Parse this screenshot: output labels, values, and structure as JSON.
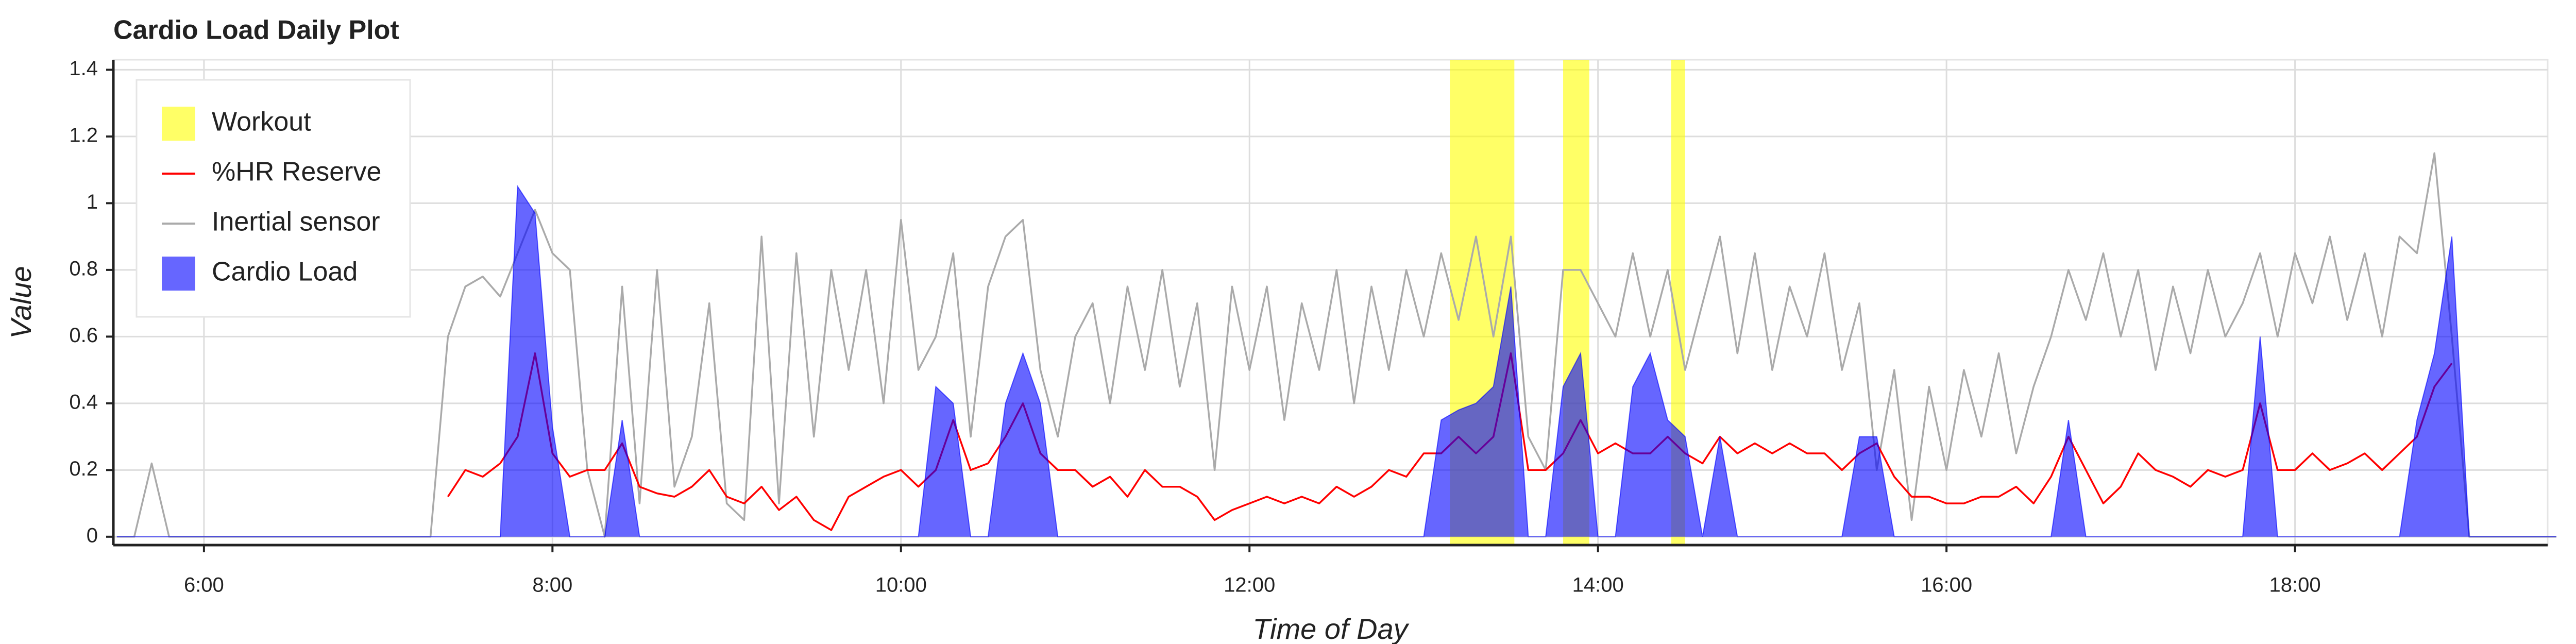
{
  "chart_data": {
    "type": "timeseries",
    "title": "Cardio Load Daily Plot",
    "x_label": "Time of Day",
    "y_label": "Value",
    "xlim": [
      5.48,
      19.45
    ],
    "ylim": [
      -0.025,
      1.43
    ],
    "xticks": [
      {
        "value": 6,
        "label": "6:00"
      },
      {
        "value": 8,
        "label": "8:00"
      },
      {
        "value": 10,
        "label": "10:00"
      },
      {
        "value": 12,
        "label": "12:00"
      },
      {
        "value": 14,
        "label": "14:00"
      },
      {
        "value": 16,
        "label": "16:00"
      },
      {
        "value": 18,
        "label": "18:00"
      }
    ],
    "yticks": [
      0,
      0.2,
      0.4,
      0.6,
      0.8,
      1,
      1.2,
      1.4
    ],
    "grid": true,
    "legend": "top-left",
    "x": [
      5.5,
      5.6,
      5.7,
      5.8,
      5.9,
      6,
      6.1,
      6.2,
      6.3,
      6.4,
      6.5,
      6.6,
      6.7,
      6.8,
      6.9,
      7,
      7.1,
      7.2,
      7.3,
      7.4,
      7.5,
      7.6,
      7.7,
      7.8,
      7.9,
      8,
      8.1,
      8.2,
      8.3,
      8.4,
      8.5,
      8.6,
      8.7,
      8.8,
      8.9,
      9,
      9.1,
      9.2,
      9.3,
      9.4,
      9.5,
      9.6,
      9.7,
      9.8,
      9.9,
      10,
      10.1,
      10.2,
      10.3,
      10.4,
      10.5,
      10.6,
      10.7,
      10.8,
      10.9,
      11,
      11.1,
      11.2,
      11.3,
      11.4,
      11.5,
      11.6,
      11.7,
      11.8,
      11.9,
      12,
      12.1,
      12.2,
      12.3,
      12.4,
      12.5,
      12.6,
      12.7,
      12.8,
      12.9,
      13,
      13.1,
      13.2,
      13.3,
      13.4,
      13.5,
      13.6,
      13.7,
      13.8,
      13.9,
      14,
      14.1,
      14.2,
      14.3,
      14.4,
      14.5,
      14.6,
      14.7,
      14.8,
      14.9,
      15,
      15.1,
      15.2,
      15.3,
      15.4,
      15.5,
      15.6,
      15.7,
      15.8,
      15.9,
      16,
      16.1,
      16.2,
      16.3,
      16.4,
      16.5,
      16.6,
      16.7,
      16.8,
      16.9,
      17,
      17.1,
      17.2,
      17.3,
      17.4,
      17.5,
      17.6,
      17.7,
      17.8,
      17.9,
      18,
      18.1,
      18.2,
      18.3,
      18.4,
      18.5,
      18.6,
      18.7,
      18.8,
      18.9,
      19,
      19.1,
      19.2,
      19.3,
      19.4,
      19.5
    ],
    "series": [
      {
        "name": "Workout",
        "type": "span",
        "color": "#ffff00",
        "spans": [
          [
            13.15,
            13.52
          ],
          [
            13.8,
            13.95
          ],
          [
            14.42,
            14.5
          ]
        ]
      },
      {
        "name": "%HR Reserve",
        "type": "line",
        "color": "#ff0000",
        "values": [
          null,
          null,
          null,
          null,
          null,
          null,
          null,
          null,
          null,
          null,
          null,
          null,
          null,
          null,
          null,
          null,
          null,
          null,
          null,
          0.12,
          0.2,
          0.18,
          0.22,
          0.3,
          0.55,
          0.25,
          0.18,
          0.2,
          0.2,
          0.28,
          0.15,
          0.13,
          0.12,
          0.15,
          0.2,
          0.12,
          0.1,
          0.15,
          0.08,
          0.12,
          0.05,
          0.02,
          0.12,
          0.15,
          0.18,
          0.2,
          0.15,
          0.2,
          0.35,
          0.2,
          0.22,
          0.3,
          0.4,
          0.25,
          0.2,
          0.2,
          0.15,
          0.18,
          0.12,
          0.2,
          0.15,
          0.15,
          0.12,
          0.05,
          0.08,
          0.1,
          0.12,
          0.1,
          0.12,
          0.1,
          0.15,
          0.12,
          0.15,
          0.2,
          0.18,
          0.25,
          0.25,
          0.3,
          0.25,
          0.3,
          0.55,
          0.2,
          0.2,
          0.25,
          0.35,
          0.25,
          0.28,
          0.25,
          0.25,
          0.3,
          0.25,
          0.22,
          0.3,
          0.25,
          0.28,
          0.25,
          0.28,
          0.25,
          0.25,
          0.2,
          0.25,
          0.28,
          0.18,
          0.12,
          0.12,
          0.1,
          0.1,
          0.12,
          0.12,
          0.15,
          0.1,
          0.18,
          0.3,
          0.2,
          0.1,
          0.15,
          0.25,
          0.2,
          0.18,
          0.15,
          0.2,
          0.18,
          0.2,
          0.4,
          0.2,
          0.2,
          0.25,
          0.2,
          0.22,
          0.25,
          0.2,
          0.25,
          0.3,
          0.45,
          0.52,
          null,
          null,
          null,
          null,
          null,
          null
        ]
      },
      {
        "name": "Inertial sensor",
        "type": "line",
        "color": "#aaaaaa",
        "values": [
          0,
          0,
          0.22,
          0,
          0,
          0,
          0,
          0,
          0,
          0,
          0,
          0,
          0,
          0,
          0,
          0,
          0,
          0,
          0,
          0.6,
          0.75,
          0.78,
          0.72,
          0.85,
          0.98,
          0.85,
          0.8,
          0.2,
          0,
          0.75,
          0.1,
          0.8,
          0.15,
          0.3,
          0.7,
          0.1,
          0.05,
          0.9,
          0.1,
          0.85,
          0.3,
          0.8,
          0.5,
          0.8,
          0.4,
          0.95,
          0.5,
          0.6,
          0.85,
          0.3,
          0.75,
          0.9,
          0.95,
          0.5,
          0.3,
          0.6,
          0.7,
          0.4,
          0.75,
          0.5,
          0.8,
          0.45,
          0.7,
          0.2,
          0.75,
          0.5,
          0.75,
          0.35,
          0.7,
          0.5,
          0.8,
          0.4,
          0.75,
          0.5,
          0.8,
          0.6,
          0.85,
          0.65,
          0.9,
          0.6,
          0.9,
          0.3,
          0.2,
          0.8,
          0.8,
          0.7,
          0.6,
          0.85,
          0.6,
          0.8,
          0.5,
          0.7,
          0.9,
          0.55,
          0.85,
          0.5,
          0.75,
          0.6,
          0.85,
          0.5,
          0.7,
          0.2,
          0.5,
          0.05,
          0.45,
          0.2,
          0.5,
          0.3,
          0.55,
          0.25,
          0.45,
          0.6,
          0.8,
          0.65,
          0.85,
          0.6,
          0.8,
          0.5,
          0.75,
          0.55,
          0.8,
          0.6,
          0.7,
          0.85,
          0.6,
          0.85,
          0.7,
          0.9,
          0.65,
          0.85,
          0.6,
          0.9,
          0.85,
          1.15,
          0.6,
          0,
          0,
          0,
          0,
          0,
          0
        ]
      },
      {
        "name": "Cardio Load",
        "type": "area",
        "color": "#0000ff",
        "values": [
          0,
          0,
          0,
          0,
          0,
          0,
          0,
          0,
          0,
          0,
          0,
          0,
          0,
          0,
          0,
          0,
          0,
          0,
          0,
          0,
          0,
          0,
          0,
          1.05,
          0.97,
          0.33,
          0,
          0,
          0,
          0.35,
          0,
          0,
          0,
          0,
          0,
          0,
          0,
          0,
          0,
          0,
          0,
          0,
          0,
          0,
          0,
          0,
          0,
          0.45,
          0.4,
          0,
          0,
          0.4,
          0.55,
          0.4,
          0,
          0,
          0,
          0,
          0,
          0,
          0,
          0,
          0,
          0,
          0,
          0,
          0,
          0,
          0,
          0,
          0,
          0,
          0,
          0,
          0,
          0,
          0.35,
          0.38,
          0.4,
          0.45,
          0.75,
          0,
          0,
          0.45,
          0.55,
          0,
          0,
          0.45,
          0.55,
          0.35,
          0.3,
          0,
          0.3,
          0,
          0,
          0,
          0,
          0,
          0,
          0,
          0.3,
          0.3,
          0,
          0,
          0,
          0,
          0,
          0,
          0,
          0,
          0,
          0,
          0.35,
          0,
          0,
          0,
          0,
          0,
          0,
          0,
          0,
          0,
          0,
          0.6,
          0,
          0,
          0,
          0,
          0,
          0,
          0,
          0,
          0.35,
          0.55,
          0.9,
          0,
          0,
          0,
          0,
          0,
          0
        ]
      }
    ]
  }
}
